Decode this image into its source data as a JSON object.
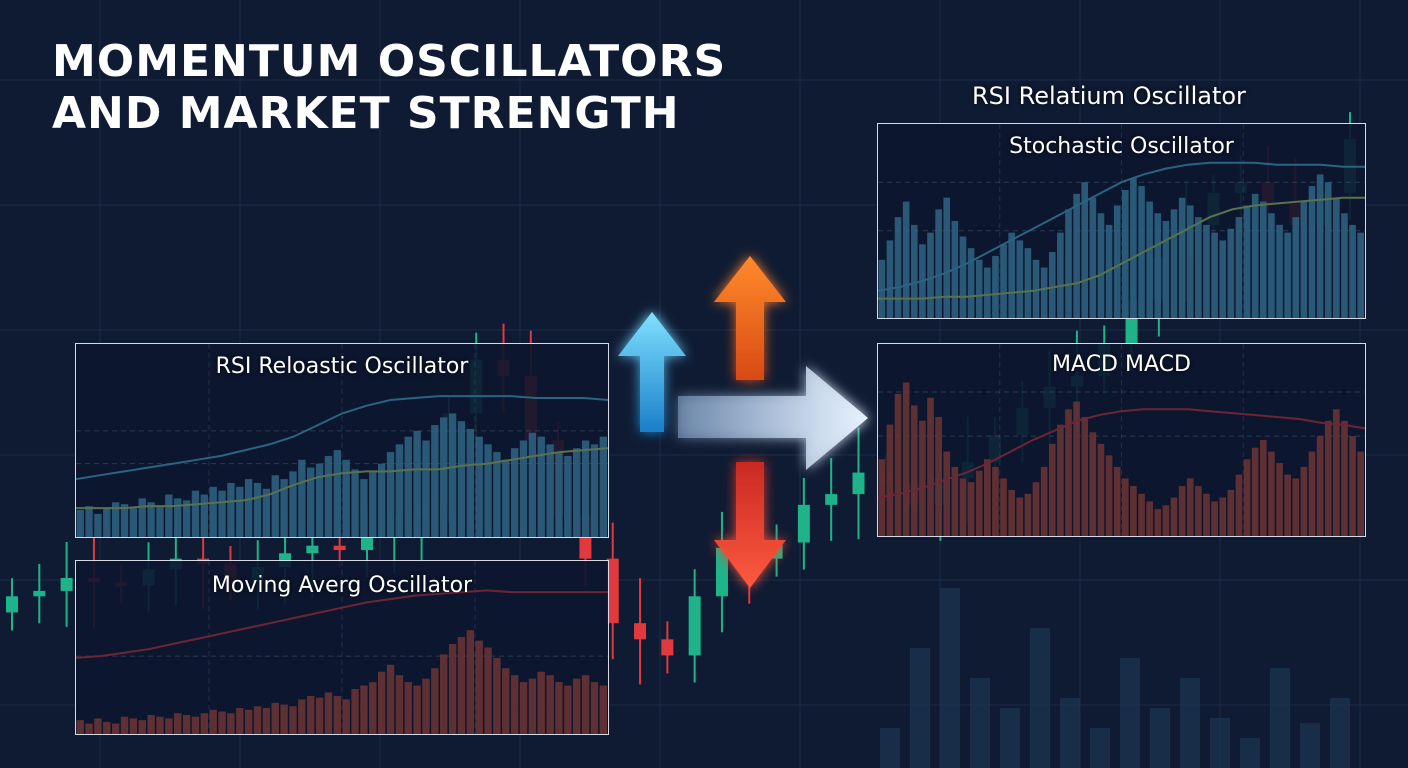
{
  "header": {
    "title_line1": "MOMENTUM OSCILLATORS",
    "title_line2": "AND MARKET STRENGTH"
  },
  "colors": {
    "background": "#0f1b33",
    "bull": "#1fb38a",
    "bear": "#e0393e",
    "rsi_line": "#4cc3e6",
    "signal_line": "#b8e070",
    "histogram_blue": "#58c6ec",
    "histogram_red": "#e35a3c",
    "arrow_up_blue": "#3fc6f0",
    "arrow_up_orange": "#f07a2a",
    "arrow_down_red": "#ef4b3a",
    "arrow_right": "#cfe0f2"
  },
  "icons": [
    "arrow-up-blue-icon",
    "arrow-up-orange-icon",
    "arrow-down-red-icon",
    "arrow-right-icon"
  ],
  "chart_data": [
    {
      "type": "candlestick",
      "title": "",
      "note": "background price chart rising from lower-left to upper-right",
      "open": [
        200,
        215,
        220,
        232,
        228,
        225,
        240,
        250,
        245,
        228,
        242,
        255,
        262,
        258,
        270,
        290,
        300,
        385,
        435,
        420,
        360,
        290,
        250,
        190,
        175,
        160,
        215,
        260,
        250,
        265,
        300,
        310,
        330,
        320,
        300,
        325,
        340,
        365,
        390,
        410,
        420,
        450,
        490,
        530,
        560,
        590,
        600,
        580,
        560,
        590
      ],
      "close": [
        215,
        220,
        232,
        228,
        225,
        240,
        250,
        245,
        228,
        242,
        255,
        262,
        258,
        270,
        290,
        300,
        385,
        435,
        420,
        360,
        290,
        250,
        190,
        175,
        160,
        215,
        260,
        250,
        265,
        300,
        310,
        330,
        320,
        300,
        325,
        340,
        365,
        390,
        410,
        420,
        450,
        490,
        530,
        560,
        590,
        600,
        580,
        560,
        590,
        640
      ]
    },
    {
      "type": "line+bar",
      "title": "RSI Reloastic Oscillator",
      "series": [
        {
          "values": [
            30,
            32,
            34,
            36,
            38,
            40,
            42,
            45,
            48,
            52,
            58,
            64,
            68,
            71,
            72,
            73,
            73,
            73,
            73,
            72,
            72,
            72,
            71
          ]
        },
        {
          "values": [
            15,
            15,
            15,
            16,
            16,
            17,
            18,
            19,
            22,
            27,
            31,
            33,
            34,
            34,
            35,
            35,
            37,
            38,
            40,
            42,
            44,
            45,
            46
          ]
        }
      ],
      "histogram": [
        14,
        16,
        12,
        15,
        18,
        17,
        15,
        20,
        18,
        16,
        22,
        20,
        19,
        24,
        22,
        26,
        24,
        28,
        26,
        30,
        28,
        25,
        32,
        30,
        34,
        40,
        36,
        38,
        42,
        45,
        40,
        35,
        30,
        34,
        38,
        44,
        48,
        52,
        55,
        50,
        58,
        62,
        64,
        60,
        56,
        52,
        48,
        44,
        40,
        46,
        50,
        54,
        52,
        48,
        44,
        42,
        46,
        50,
        48,
        52
      ],
      "ylim": [
        0,
        100
      ]
    },
    {
      "type": "line+bar",
      "title": "Moving Averg Oscillator",
      "series": [
        {
          "values": [
            44,
            45,
            47,
            49,
            52,
            55,
            58,
            61,
            64,
            67,
            70,
            73,
            76,
            78,
            80,
            81,
            82,
            83,
            82,
            82,
            82,
            82,
            82
          ]
        }
      ],
      "histogram": [
        8,
        6,
        9,
        7,
        6,
        10,
        9,
        8,
        11,
        10,
        9,
        12,
        11,
        10,
        12,
        14,
        13,
        12,
        15,
        14,
        16,
        15,
        18,
        17,
        16,
        20,
        22,
        21,
        24,
        22,
        20,
        26,
        28,
        30,
        36,
        40,
        34,
        30,
        28,
        32,
        38,
        46,
        52,
        56,
        60,
        54,
        50,
        44,
        38,
        34,
        30,
        32,
        36,
        34,
        30,
        28,
        32,
        34,
        30,
        28
      ],
      "ylim": [
        0,
        100
      ]
    },
    {
      "type": "line+bar",
      "title": "Stochastic Oscillator",
      "series": [
        {
          "values": [
            14,
            16,
            19,
            23,
            28,
            34,
            40,
            46,
            52,
            58,
            64,
            70,
            74,
            77,
            79,
            80,
            80,
            80,
            79,
            79,
            79,
            78,
            78
          ]
        },
        {
          "values": [
            10,
            10,
            10,
            11,
            11,
            12,
            13,
            14,
            16,
            18,
            22,
            28,
            34,
            40,
            46,
            52,
            56,
            58,
            59,
            60,
            61,
            62,
            62
          ]
        }
      ],
      "histogram": [
        30,
        40,
        52,
        60,
        48,
        38,
        44,
        56,
        62,
        50,
        42,
        36,
        30,
        26,
        32,
        38,
        44,
        40,
        36,
        30,
        26,
        34,
        44,
        56,
        64,
        70,
        62,
        54,
        48,
        58,
        66,
        72,
        68,
        60,
        54,
        50,
        56,
        62,
        58,
        52,
        48,
        44,
        40,
        46,
        52,
        58,
        64,
        60,
        54,
        48,
        44,
        52,
        60,
        68,
        74,
        70,
        62,
        54,
        48,
        44
      ],
      "ylim": [
        0,
        100
      ]
    },
    {
      "type": "line+bar",
      "title": "MACD MACD",
      "series": [
        {
          "values": [
            20,
            22,
            25,
            29,
            33,
            38,
            44,
            50,
            55,
            60,
            63,
            65,
            66,
            66,
            66,
            65,
            64,
            63,
            62,
            61,
            59,
            58,
            56
          ]
        }
      ],
      "histogram": [
        40,
        58,
        74,
        80,
        68,
        60,
        72,
        62,
        44,
        36,
        30,
        28,
        34,
        40,
        36,
        30,
        24,
        20,
        22,
        28,
        36,
        48,
        58,
        66,
        70,
        62,
        54,
        48,
        42,
        36,
        30,
        26,
        22,
        18,
        14,
        16,
        20,
        26,
        30,
        26,
        22,
        18,
        20,
        24,
        32,
        40,
        46,
        50,
        44,
        38,
        32,
        30,
        36,
        44,
        52,
        60,
        66,
        60,
        52,
        44
      ],
      "ylim": [
        0,
        100
      ]
    },
    {
      "type": "line",
      "title": "RSI Relatium Oscillator",
      "note": "label printed above the stochastic panel"
    }
  ]
}
